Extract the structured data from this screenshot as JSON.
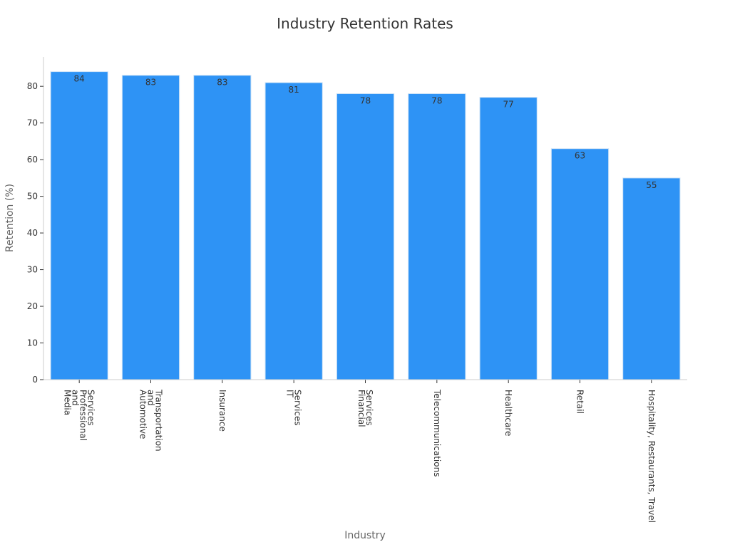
{
  "chart_data": {
    "type": "bar",
    "title": "Industry Retention Rates",
    "xlabel": "Industry",
    "ylabel": "Retention (%)",
    "categories": [
      [
        "Media",
        "and",
        "Professional",
        "Services"
      ],
      [
        "Automotive",
        "and",
        "Transportation"
      ],
      [
        "Insurance"
      ],
      [
        "IT",
        "Services"
      ],
      [
        "Financial",
        "Services"
      ],
      [
        "Telecommunications"
      ],
      [
        "Healthcare"
      ],
      [
        "Retail"
      ],
      [
        "Hospitality, Restaurants, Travel"
      ]
    ],
    "values": [
      84,
      83,
      83,
      81,
      78,
      78,
      77,
      63,
      55
    ],
    "yticks": [
      0,
      10,
      20,
      30,
      40,
      50,
      60,
      70,
      80
    ],
    "ylim": [
      0,
      88
    ],
    "grid": false,
    "bar_color": "#2e93f5",
    "bar_edge_color": "#cfe3f7"
  }
}
